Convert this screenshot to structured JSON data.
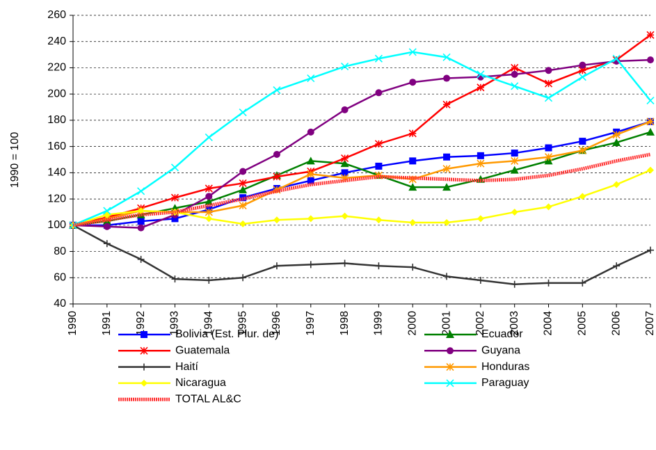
{
  "chart_data": {
    "type": "line",
    "y_label": "1990 = 100",
    "categories": [
      "1990",
      "1991",
      "1992",
      "1993",
      "1994",
      "1995",
      "1996",
      "1997",
      "1998",
      "1999",
      "2000",
      "2001",
      "2002",
      "2003",
      "2004",
      "2005",
      "2006",
      "2007"
    ],
    "ylim": [
      40,
      260
    ],
    "yticks": [
      40,
      60,
      80,
      100,
      120,
      140,
      160,
      180,
      200,
      220,
      240,
      260
    ],
    "grid": true,
    "series": [
      {
        "name": "Bolivia (Est. Plur. de)",
        "color": "#0000ff",
        "marker": "square",
        "values": [
          100,
          100,
          103,
          105,
          112,
          121,
          128,
          134,
          140,
          145,
          149,
          152,
          153,
          155,
          159,
          164,
          171,
          179
        ]
      },
      {
        "name": "Ecuador",
        "color": "#008000",
        "marker": "triangle",
        "values": [
          100,
          103,
          108,
          113,
          118,
          127,
          138,
          149,
          147,
          138,
          129,
          129,
          135,
          142,
          149,
          157,
          163,
          171
        ]
      },
      {
        "name": "Guatemala",
        "color": "#ff0000",
        "marker": "star",
        "values": [
          100,
          106,
          113,
          121,
          128,
          132,
          137,
          141,
          151,
          162,
          170,
          192,
          205,
          220,
          208,
          218,
          226,
          245
        ]
      },
      {
        "name": "Guyana",
        "color": "#800080",
        "marker": "circle",
        "values": [
          100,
          99,
          98,
          108,
          122,
          141,
          154,
          171,
          188,
          201,
          209,
          212,
          213,
          215,
          218,
          222,
          225,
          226
        ]
      },
      {
        "name": "Haití",
        "color": "#333333",
        "marker": "plus",
        "values": [
          100,
          86,
          74,
          59,
          58,
          60,
          69,
          70,
          71,
          69,
          68,
          61,
          58,
          55,
          56,
          56,
          69,
          81
        ]
      },
      {
        "name": "Honduras",
        "color": "#ff9900",
        "marker": "star",
        "values": [
          100,
          105,
          111,
          110,
          110,
          115,
          127,
          139,
          136,
          138,
          135,
          143,
          147,
          149,
          152,
          157,
          169,
          179
        ]
      },
      {
        "name": "Nicaragua",
        "color": "#ffff00",
        "marker": "diamond",
        "values": [
          100,
          108,
          111,
          110,
          105,
          101,
          104,
          105,
          107,
          104,
          102,
          102,
          105,
          110,
          114,
          122,
          131,
          142
        ]
      },
      {
        "name": "Paraguay",
        "color": "#00ffff",
        "marker": "x",
        "values": [
          100,
          111,
          126,
          144,
          167,
          186,
          203,
          212,
          221,
          227,
          232,
          228,
          215,
          206,
          197,
          213,
          227,
          195
        ]
      },
      {
        "name": "TOTAL AL&C",
        "color": "#ff3333",
        "marker": "none",
        "values": [
          100,
          104,
          108,
          110,
          115,
          120,
          126,
          131,
          134,
          137,
          136,
          135,
          134,
          135,
          138,
          143,
          149,
          154
        ]
      }
    ]
  }
}
